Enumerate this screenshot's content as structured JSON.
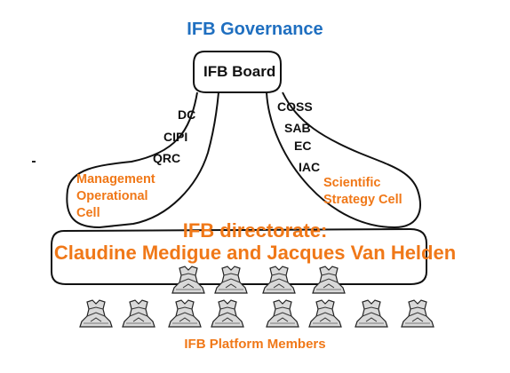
{
  "title": "IFB Governance",
  "board": {
    "label": "IFB Board"
  },
  "left_branch": {
    "committees": [
      "DC",
      "CIPI",
      "QRC"
    ],
    "cell_lines": [
      "Management",
      "Operational",
      "Cell"
    ]
  },
  "right_branch": {
    "committees": [
      "COSS",
      "SAB",
      "EC",
      "IAC"
    ],
    "cell_lines": [
      "Scientific",
      "Strategy Cell"
    ]
  },
  "directorate": {
    "line1": "IFB directorate:",
    "line2": "Claudine Medigue and Jacques Van Helden"
  },
  "members_label": "IFB Platform Members",
  "colors": {
    "title": "#1f6fc0",
    "accent": "#f07818",
    "outline": "#111111"
  }
}
